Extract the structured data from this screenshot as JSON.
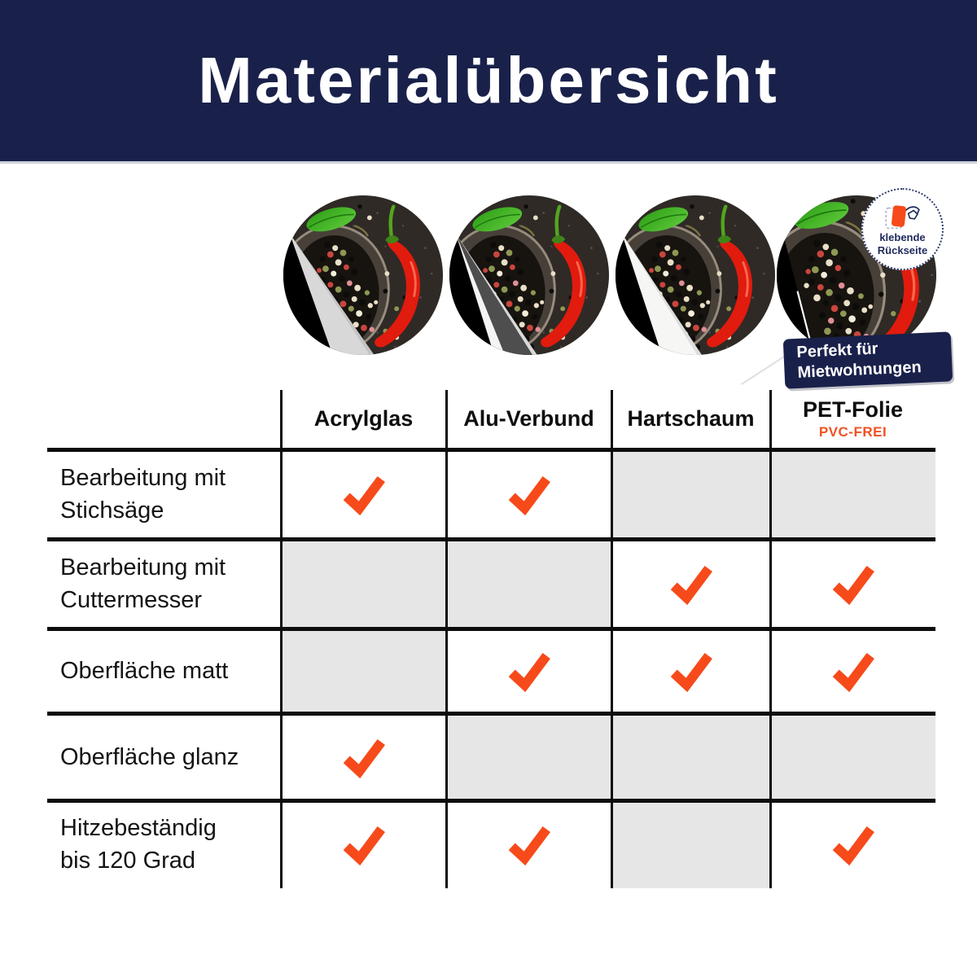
{
  "title": "Materialübersicht",
  "sticker_badge": {
    "line1": "klebende",
    "line2": "Rückseite"
  },
  "ribbon": {
    "line1": "Perfekt für",
    "line2": "Mietwohnungen"
  },
  "materials": [
    "Acrylglas",
    "Alu-Verbund",
    "Hartschaum",
    "PET-Folie"
  ],
  "table": {
    "columns": [
      {
        "label": "Acrylglas",
        "sublabel": null
      },
      {
        "label": "Alu-Verbund",
        "sublabel": null
      },
      {
        "label": "Hartschaum",
        "sublabel": null
      },
      {
        "label": "PET-Folie",
        "sublabel": "PVC-FREI"
      }
    ],
    "rows": [
      {
        "label": [
          "Bearbeitung mit",
          "Stichsäge"
        ],
        "checks": [
          true,
          true,
          false,
          false
        ]
      },
      {
        "label": [
          "Bearbeitung mit",
          "Cuttermesser"
        ],
        "checks": [
          false,
          false,
          true,
          true
        ]
      },
      {
        "label": [
          "Oberfläche matt"
        ],
        "checks": [
          false,
          true,
          true,
          true
        ]
      },
      {
        "label": [
          "Oberfläche glanz"
        ],
        "checks": [
          true,
          false,
          false,
          false
        ]
      },
      {
        "label": [
          "Hitzebeständig",
          "bis 120 Grad"
        ],
        "checks": [
          true,
          true,
          false,
          true
        ]
      }
    ]
  },
  "colors": {
    "navy": "#19214b",
    "accent_orange": "#f74a1a",
    "pvc_free_orange": "#ee5222",
    "cell_gray": "#e6e6e6",
    "border_black": "#0d0d0d"
  }
}
